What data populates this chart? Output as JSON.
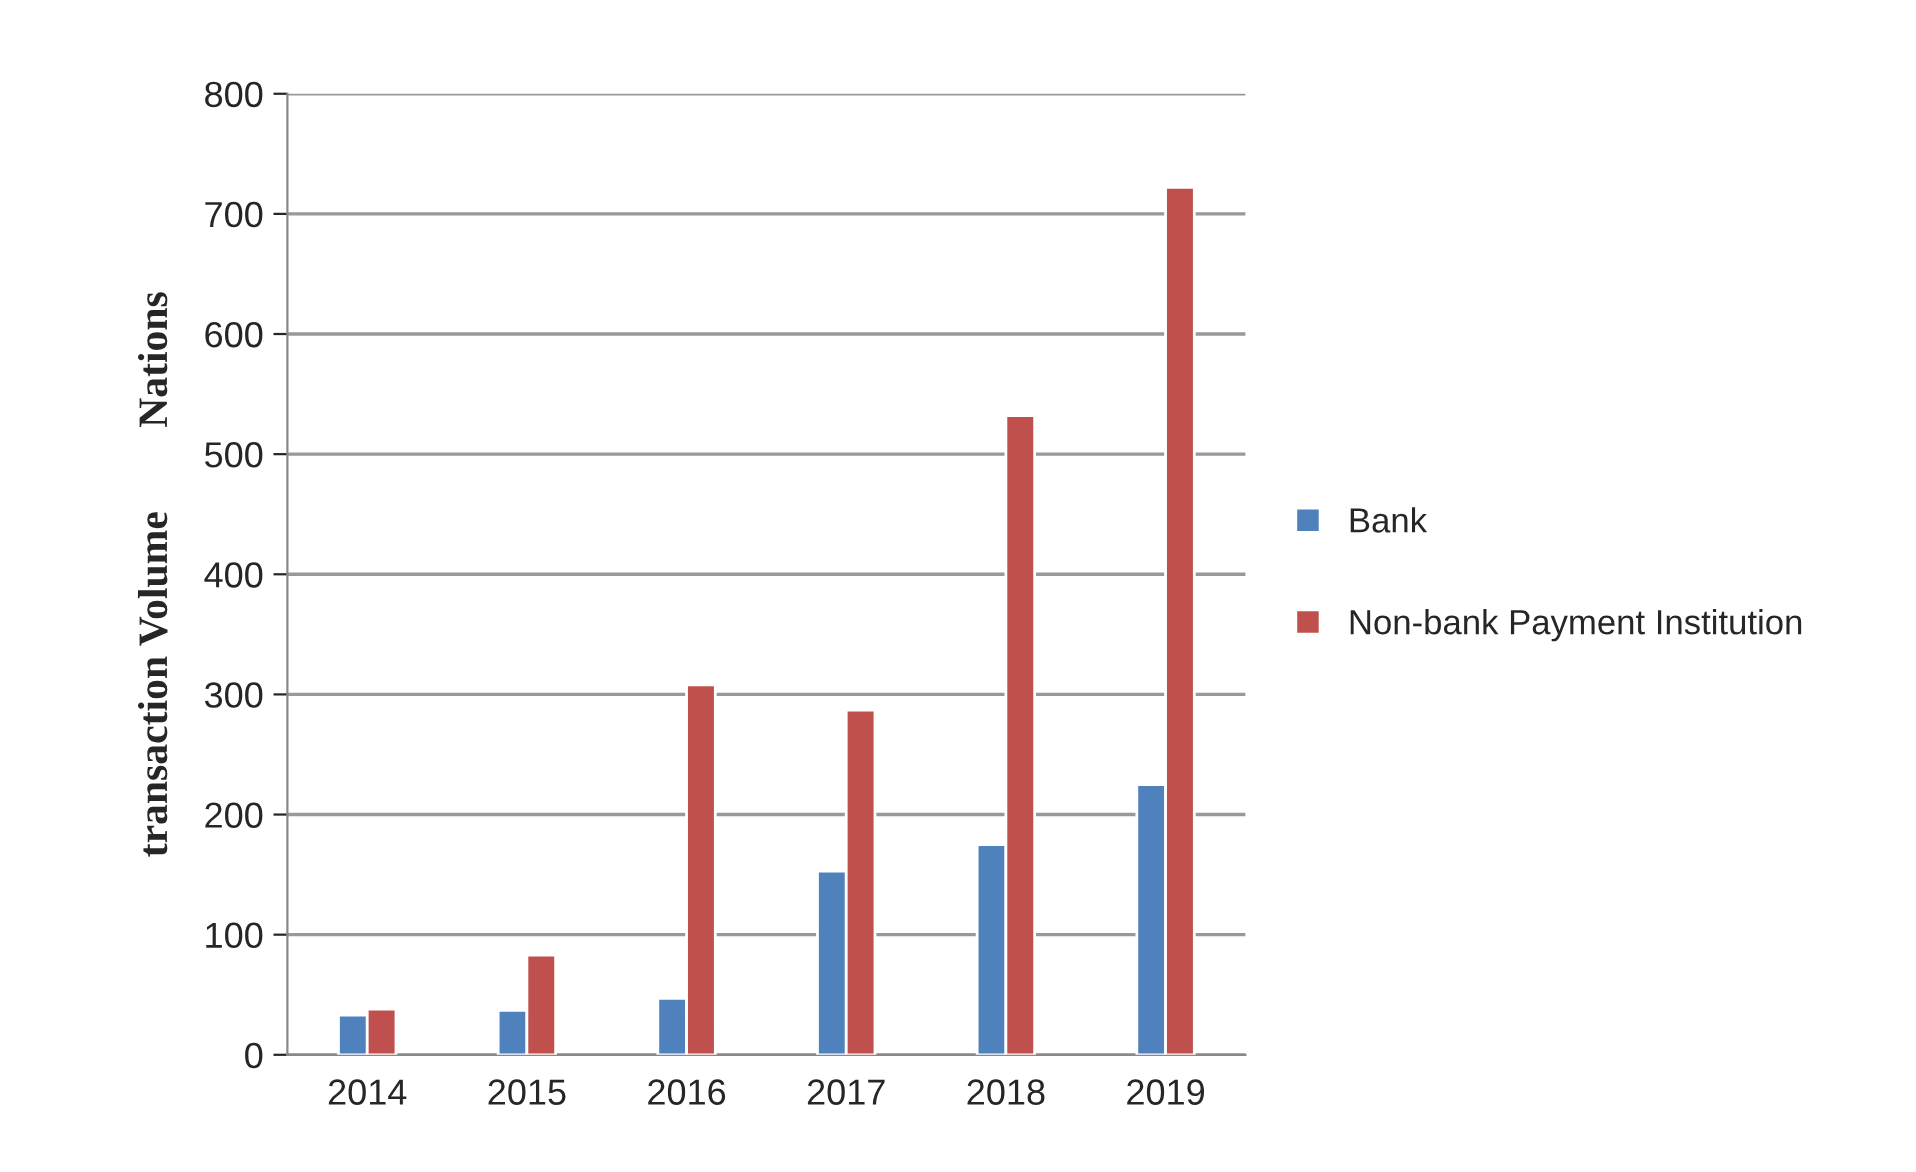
{
  "chart_data": {
    "type": "bar",
    "ylabel": "transaction Volume        Nations",
    "categories": [
      "2014",
      "2015",
      "2016",
      "2017",
      "2018",
      "2019"
    ],
    "series": [
      {
        "name": "Bank",
        "color": "#4f81bd",
        "values": [
          33,
          37,
          47,
          153,
          175,
          225
        ]
      },
      {
        "name": "Non-bank Payment Institution",
        "color": "#c0504d",
        "values": [
          38,
          83,
          308,
          287,
          532,
          722
        ]
      }
    ],
    "ylim": [
      0,
      800
    ],
    "yticks": [
      0,
      100,
      200,
      300,
      400,
      500,
      600,
      700,
      800
    ],
    "grid": "y",
    "legend": "right"
  }
}
